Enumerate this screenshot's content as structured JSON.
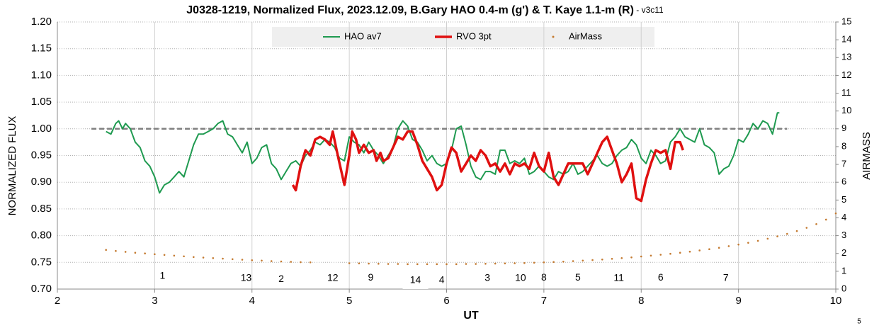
{
  "chart_data": {
    "type": "line",
    "title": "J0328-1219, Normalized Flux, 2023.12.09, B.Gary HAO 0.4-m (g') & T. Kaye 1.1-m (R)",
    "title_suffix": " - v3c11",
    "x_label": "UT",
    "y_label": "NORMALIZED FLUX",
    "y2_label": "AIRMASS",
    "footer": "5",
    "xlim": [
      2,
      10
    ],
    "xticks": [
      2,
      3,
      4,
      5,
      6,
      7,
      8,
      9,
      10
    ],
    "ylim": [
      0.7,
      1.2
    ],
    "yticks": [
      {
        "value": 0.7,
        "label": "0.70"
      },
      0.75,
      {
        "value": 0.8,
        "label": "0.80"
      },
      0.85,
      {
        "value": 0.9,
        "label": "0.90"
      },
      0.95,
      {
        "value": 1.0,
        "label": "1.00"
      },
      1.05,
      {
        "value": 1.1,
        "label": "1.10"
      },
      1.15,
      {
        "value": 1.2,
        "label": "1.20"
      }
    ],
    "y2lim": [
      0,
      15
    ],
    "y2ticks": [
      0,
      1,
      2,
      3,
      4,
      5,
      6,
      7,
      8,
      9,
      10,
      11,
      12,
      13,
      14,
      15
    ],
    "grid": true,
    "reference_line": {
      "y": 1.0,
      "x_start": 2.35,
      "x_end": 9.5,
      "color": "#808080"
    },
    "series": [
      {
        "name": "HAO av7",
        "color": "#1f9a50",
        "style": "line",
        "width": 2,
        "x": [
          2.5,
          2.55,
          2.6,
          2.63,
          2.67,
          2.7,
          2.75,
          2.8,
          2.85,
          2.9,
          2.95,
          3.0,
          3.05,
          3.1,
          3.15,
          3.2,
          3.25,
          3.3,
          3.35,
          3.4,
          3.45,
          3.5,
          3.55,
          3.6,
          3.65,
          3.7,
          3.75,
          3.8,
          3.85,
          3.9,
          3.95,
          4.0,
          4.05,
          4.1,
          4.15,
          4.2,
          4.25,
          4.3,
          4.35,
          4.4,
          4.45,
          4.5,
          4.55,
          4.6,
          4.65,
          4.7,
          4.75,
          4.8,
          4.85,
          4.9,
          4.95,
          5.0,
          5.05,
          5.1,
          5.15,
          5.2,
          5.25,
          5.3,
          5.35,
          5.4,
          5.45,
          5.5,
          5.55,
          5.6,
          5.65,
          5.7,
          5.75,
          5.8,
          5.85,
          5.9,
          5.95,
          6.0,
          6.05,
          6.1,
          6.15,
          6.2,
          6.25,
          6.3,
          6.35,
          6.4,
          6.45,
          6.5,
          6.55,
          6.6,
          6.65,
          6.7,
          6.75,
          6.8,
          6.85,
          6.9,
          6.95,
          7.0,
          7.05,
          7.1,
          7.15,
          7.2,
          7.25,
          7.3,
          7.35,
          7.4,
          7.45,
          7.5,
          7.55,
          7.6,
          7.65,
          7.7,
          7.75,
          7.8,
          7.85,
          7.9,
          7.95,
          8.0,
          8.05,
          8.1,
          8.15,
          8.2,
          8.25,
          8.3,
          8.35,
          8.4,
          8.45,
          8.5,
          8.55,
          8.6,
          8.65,
          8.7,
          8.75,
          8.8,
          8.85,
          8.9,
          8.95,
          9.0,
          9.05,
          9.1,
          9.15,
          9.2,
          9.25,
          9.3,
          9.35,
          9.4,
          9.42
        ],
        "values": [
          0.995,
          0.99,
          1.01,
          1.015,
          1.0,
          1.01,
          1.0,
          0.975,
          0.965,
          0.94,
          0.93,
          0.91,
          0.88,
          0.895,
          0.9,
          0.91,
          0.92,
          0.91,
          0.94,
          0.97,
          0.99,
          0.99,
          0.995,
          1.0,
          1.01,
          1.015,
          0.99,
          0.985,
          0.97,
          0.955,
          0.975,
          0.935,
          0.945,
          0.965,
          0.97,
          0.935,
          0.925,
          0.905,
          0.92,
          0.935,
          0.94,
          0.93,
          0.95,
          0.96,
          0.975,
          0.97,
          0.98,
          0.975,
          0.965,
          0.945,
          0.94,
          0.985,
          0.975,
          0.97,
          0.955,
          0.975,
          0.96,
          0.95,
          0.935,
          0.95,
          0.965,
          1.0,
          1.015,
          1.005,
          0.98,
          0.975,
          0.96,
          0.94,
          0.95,
          0.935,
          0.93,
          0.935,
          0.96,
          1.0,
          1.005,
          0.97,
          0.93,
          0.91,
          0.905,
          0.92,
          0.92,
          0.915,
          0.96,
          0.96,
          0.935,
          0.94,
          0.935,
          0.945,
          0.915,
          0.92,
          0.93,
          0.92,
          0.91,
          0.905,
          0.92,
          0.915,
          0.92,
          0.935,
          0.915,
          0.92,
          0.93,
          0.94,
          0.95,
          0.935,
          0.93,
          0.935,
          0.95,
          0.96,
          0.965,
          0.98,
          0.97,
          0.945,
          0.935,
          0.96,
          0.95,
          0.935,
          0.94,
          0.975,
          0.985,
          1.0,
          0.985,
          0.98,
          0.975,
          1.0,
          0.97,
          0.965,
          0.955,
          0.915,
          0.925,
          0.93,
          0.95,
          0.98,
          0.975,
          0.99,
          1.01,
          1.0,
          1.015,
          1.01,
          0.99,
          1.03,
          1.03
        ]
      },
      {
        "name": "RVO 3pt",
        "color": "#e01010",
        "style": "line",
        "width": 3.5,
        "x": [
          4.42,
          4.45,
          4.5,
          4.55,
          4.6,
          4.65,
          4.7,
          4.75,
          4.8,
          4.83,
          4.87,
          4.9,
          4.95,
          5.0,
          5.03,
          5.07,
          5.1,
          5.15,
          5.2,
          5.25,
          5.28,
          5.32,
          5.35,
          5.4,
          5.45,
          5.5,
          5.55,
          5.6,
          5.65,
          5.7,
          5.75,
          5.8,
          5.85,
          5.9,
          5.95,
          6.0,
          6.05,
          6.1,
          6.15,
          6.2,
          6.25,
          6.3,
          6.35,
          6.4,
          6.45,
          6.5,
          6.55,
          6.6,
          6.65,
          6.7,
          6.75,
          6.8,
          6.85,
          6.9,
          6.95,
          7.0,
          7.05,
          7.1,
          7.15,
          7.2,
          7.25,
          7.3,
          7.35,
          7.4,
          7.45,
          7.5,
          7.55,
          7.6,
          7.65,
          7.7,
          7.75,
          7.8,
          7.85,
          7.9,
          7.95,
          8.0,
          8.05,
          8.1,
          8.15,
          8.2,
          8.25,
          8.3,
          8.35,
          8.4,
          8.43
        ],
        "values": [
          0.895,
          0.885,
          0.93,
          0.96,
          0.95,
          0.98,
          0.985,
          0.98,
          0.97,
          0.995,
          0.96,
          0.935,
          0.895,
          0.95,
          0.995,
          0.98,
          0.955,
          0.97,
          0.955,
          0.96,
          0.94,
          0.955,
          0.94,
          0.945,
          0.965,
          0.985,
          0.98,
          0.995,
          0.995,
          0.97,
          0.94,
          0.925,
          0.91,
          0.885,
          0.895,
          0.935,
          0.965,
          0.955,
          0.92,
          0.935,
          0.95,
          0.94,
          0.96,
          0.95,
          0.93,
          0.935,
          0.92,
          0.935,
          0.915,
          0.935,
          0.93,
          0.935,
          0.925,
          0.955,
          0.93,
          0.92,
          0.955,
          0.91,
          0.895,
          0.915,
          0.935,
          0.935,
          0.935,
          0.935,
          0.915,
          0.935,
          0.955,
          0.975,
          0.985,
          0.96,
          0.935,
          0.9,
          0.915,
          0.935,
          0.87,
          0.865,
          0.905,
          0.935,
          0.96,
          0.955,
          0.96,
          0.925,
          0.975,
          0.975,
          0.96
        ]
      },
      {
        "name": "AirMass",
        "color": "#c47a30",
        "style": "dots",
        "axis": "y2",
        "x": [
          2.5,
          2.6,
          2.7,
          2.8,
          2.9,
          3.0,
          3.1,
          3.2,
          3.3,
          3.4,
          3.5,
          3.6,
          3.7,
          3.8,
          3.9,
          4.0,
          4.1,
          4.2,
          4.3,
          4.4,
          4.5,
          4.6,
          5.0,
          5.1,
          5.2,
          5.3,
          5.4,
          5.5,
          5.6,
          5.7,
          5.8,
          5.9,
          6.0,
          6.1,
          6.2,
          6.3,
          6.4,
          6.5,
          6.6,
          6.7,
          6.8,
          6.9,
          7.0,
          7.1,
          7.2,
          7.3,
          7.4,
          7.5,
          7.6,
          7.7,
          7.8,
          7.9,
          8.0,
          8.1,
          8.2,
          8.3,
          8.4,
          8.5,
          8.6,
          8.7,
          8.8,
          8.9,
          9.0,
          9.1,
          9.2,
          9.3,
          9.4,
          9.5,
          9.6,
          9.7,
          9.8,
          9.9,
          10.0
        ],
        "values": [
          2.2,
          2.14,
          2.09,
          2.04,
          2.0,
          1.96,
          1.92,
          1.88,
          1.84,
          1.8,
          1.77,
          1.74,
          1.71,
          1.68,
          1.65,
          1.62,
          1.6,
          1.57,
          1.55,
          1.53,
          1.51,
          1.5,
          1.45,
          1.44,
          1.43,
          1.42,
          1.41,
          1.41,
          1.4,
          1.4,
          1.4,
          1.4,
          1.4,
          1.4,
          1.41,
          1.41,
          1.42,
          1.43,
          1.44,
          1.45,
          1.46,
          1.48,
          1.5,
          1.52,
          1.54,
          1.57,
          1.6,
          1.63,
          1.66,
          1.7,
          1.74,
          1.78,
          1.83,
          1.88,
          1.93,
          1.98,
          2.04,
          2.1,
          2.17,
          2.24,
          2.32,
          2.41,
          2.5,
          2.6,
          2.71,
          2.83,
          2.96,
          3.1,
          3.26,
          3.44,
          3.65,
          3.9,
          4.25
        ]
      }
    ],
    "annotations": [
      {
        "text": "1",
        "x": 3.08,
        "y": 0.724
      },
      {
        "text": "13",
        "x": 3.94,
        "y": 0.72
      },
      {
        "text": "2",
        "x": 4.3,
        "y": 0.718
      },
      {
        "text": "12",
        "x": 4.83,
        "y": 0.72
      },
      {
        "text": "9",
        "x": 5.22,
        "y": 0.721
      },
      {
        "text": "14",
        "x": 5.68,
        "y": 0.716
      },
      {
        "text": "4",
        "x": 5.95,
        "y": 0.716
      },
      {
        "text": "3",
        "x": 6.42,
        "y": 0.72
      },
      {
        "text": "10",
        "x": 6.76,
        "y": 0.72
      },
      {
        "text": "8",
        "x": 7.0,
        "y": 0.721
      },
      {
        "text": "5",
        "x": 7.35,
        "y": 0.721
      },
      {
        "text": "11",
        "x": 7.77,
        "y": 0.72
      },
      {
        "text": "6",
        "x": 8.2,
        "y": 0.721
      },
      {
        "text": "7",
        "x": 8.87,
        "y": 0.72
      }
    ]
  }
}
